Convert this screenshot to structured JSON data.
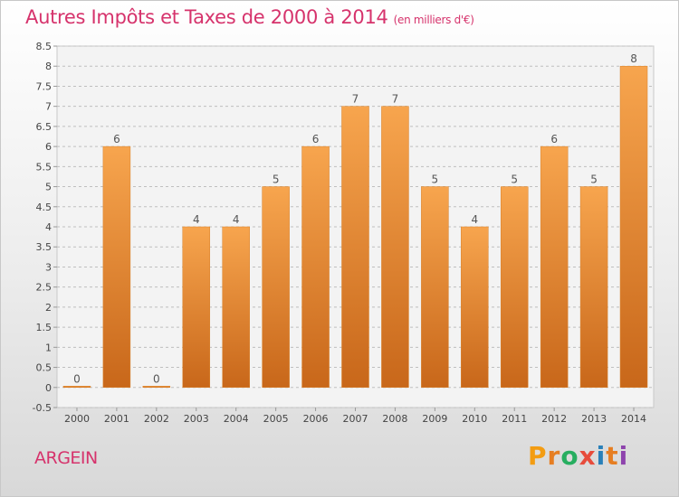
{
  "header": {
    "title": "Autres Impôts et Taxes de 2000 à 2014",
    "unit": "(en milliers d'€)"
  },
  "footer": {
    "commune": "ARGEIN",
    "logo_text": "Proxiti"
  },
  "colors": {
    "title": "#d6336c",
    "bar_top": "#f7a54e",
    "bar_bottom": "#c8671a",
    "grid": "#bfbfbf"
  },
  "chart_data": {
    "type": "bar",
    "title": "Autres Impôts et Taxes de 2000 à 2014",
    "subtitle": "(en milliers d'€)",
    "xlabel": "",
    "ylabel": "",
    "categories": [
      "2000",
      "2001",
      "2002",
      "2003",
      "2004",
      "2005",
      "2006",
      "2007",
      "2008",
      "2009",
      "2010",
      "2011",
      "2012",
      "2013",
      "2014"
    ],
    "values": [
      0,
      6,
      0,
      4,
      4,
      5,
      6,
      7,
      7,
      5,
      4,
      5,
      6,
      5,
      8
    ],
    "data_labels": [
      "0",
      "6",
      "0",
      "4",
      "4",
      "5",
      "6",
      "7",
      "7",
      "5",
      "4",
      "5",
      "6",
      "5",
      "8"
    ],
    "ylim": [
      -0.5,
      8.5
    ],
    "yticks": [
      -0.5,
      0,
      0.5,
      1,
      1.5,
      2,
      2.5,
      3,
      3.5,
      4,
      4.5,
      5,
      5.5,
      6,
      6.5,
      7,
      7.5,
      8,
      8.5
    ],
    "ytick_labels": [
      "-0.5",
      "0",
      "0.5",
      "1",
      "1.5",
      "2",
      "2.5",
      "3",
      "3.5",
      "4",
      "4.5",
      "5",
      "5.5",
      "6",
      "6.5",
      "7",
      "7.5",
      "8",
      "8.5"
    ],
    "grid": true,
    "legend": "none"
  }
}
